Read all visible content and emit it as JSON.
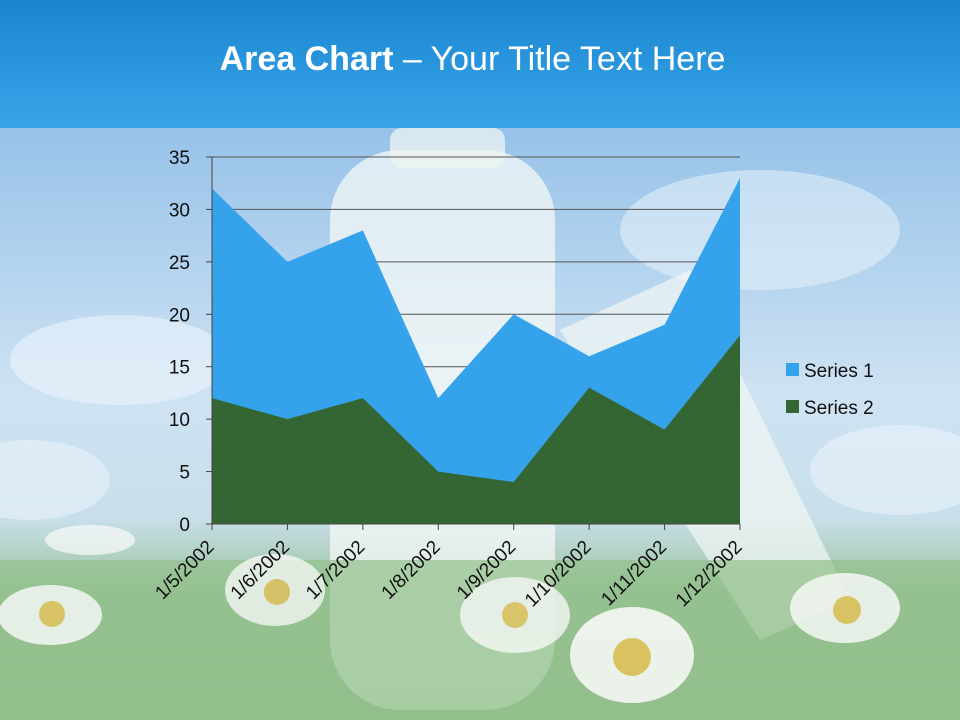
{
  "slide": {
    "title_bold": "Area Chart",
    "title_rest": " – Your Title Text Here"
  },
  "colors": {
    "series1": "#35a2ec",
    "series2": "#336633",
    "grid": "#555555",
    "title_band": "#2394dc"
  },
  "chart_data": {
    "type": "area",
    "stacked": false,
    "categories": [
      "1/5/2002",
      "1/6/2002",
      "1/7/2002",
      "1/8/2002",
      "1/9/2002",
      "1/10/2002",
      "1/11/2002",
      "1/12/2002"
    ],
    "series": [
      {
        "name": "Series 1",
        "values": [
          32,
          25,
          28,
          12,
          20,
          16,
          19,
          33
        ]
      },
      {
        "name": "Series 2",
        "values": [
          12,
          10,
          12,
          5,
          4,
          13,
          9,
          18
        ]
      }
    ],
    "ylim": [
      0,
      35
    ],
    "yticks": [
      "0",
      "5",
      "10",
      "15",
      "20",
      "25",
      "30",
      "35"
    ],
    "grid": true,
    "legend_position": "right"
  }
}
